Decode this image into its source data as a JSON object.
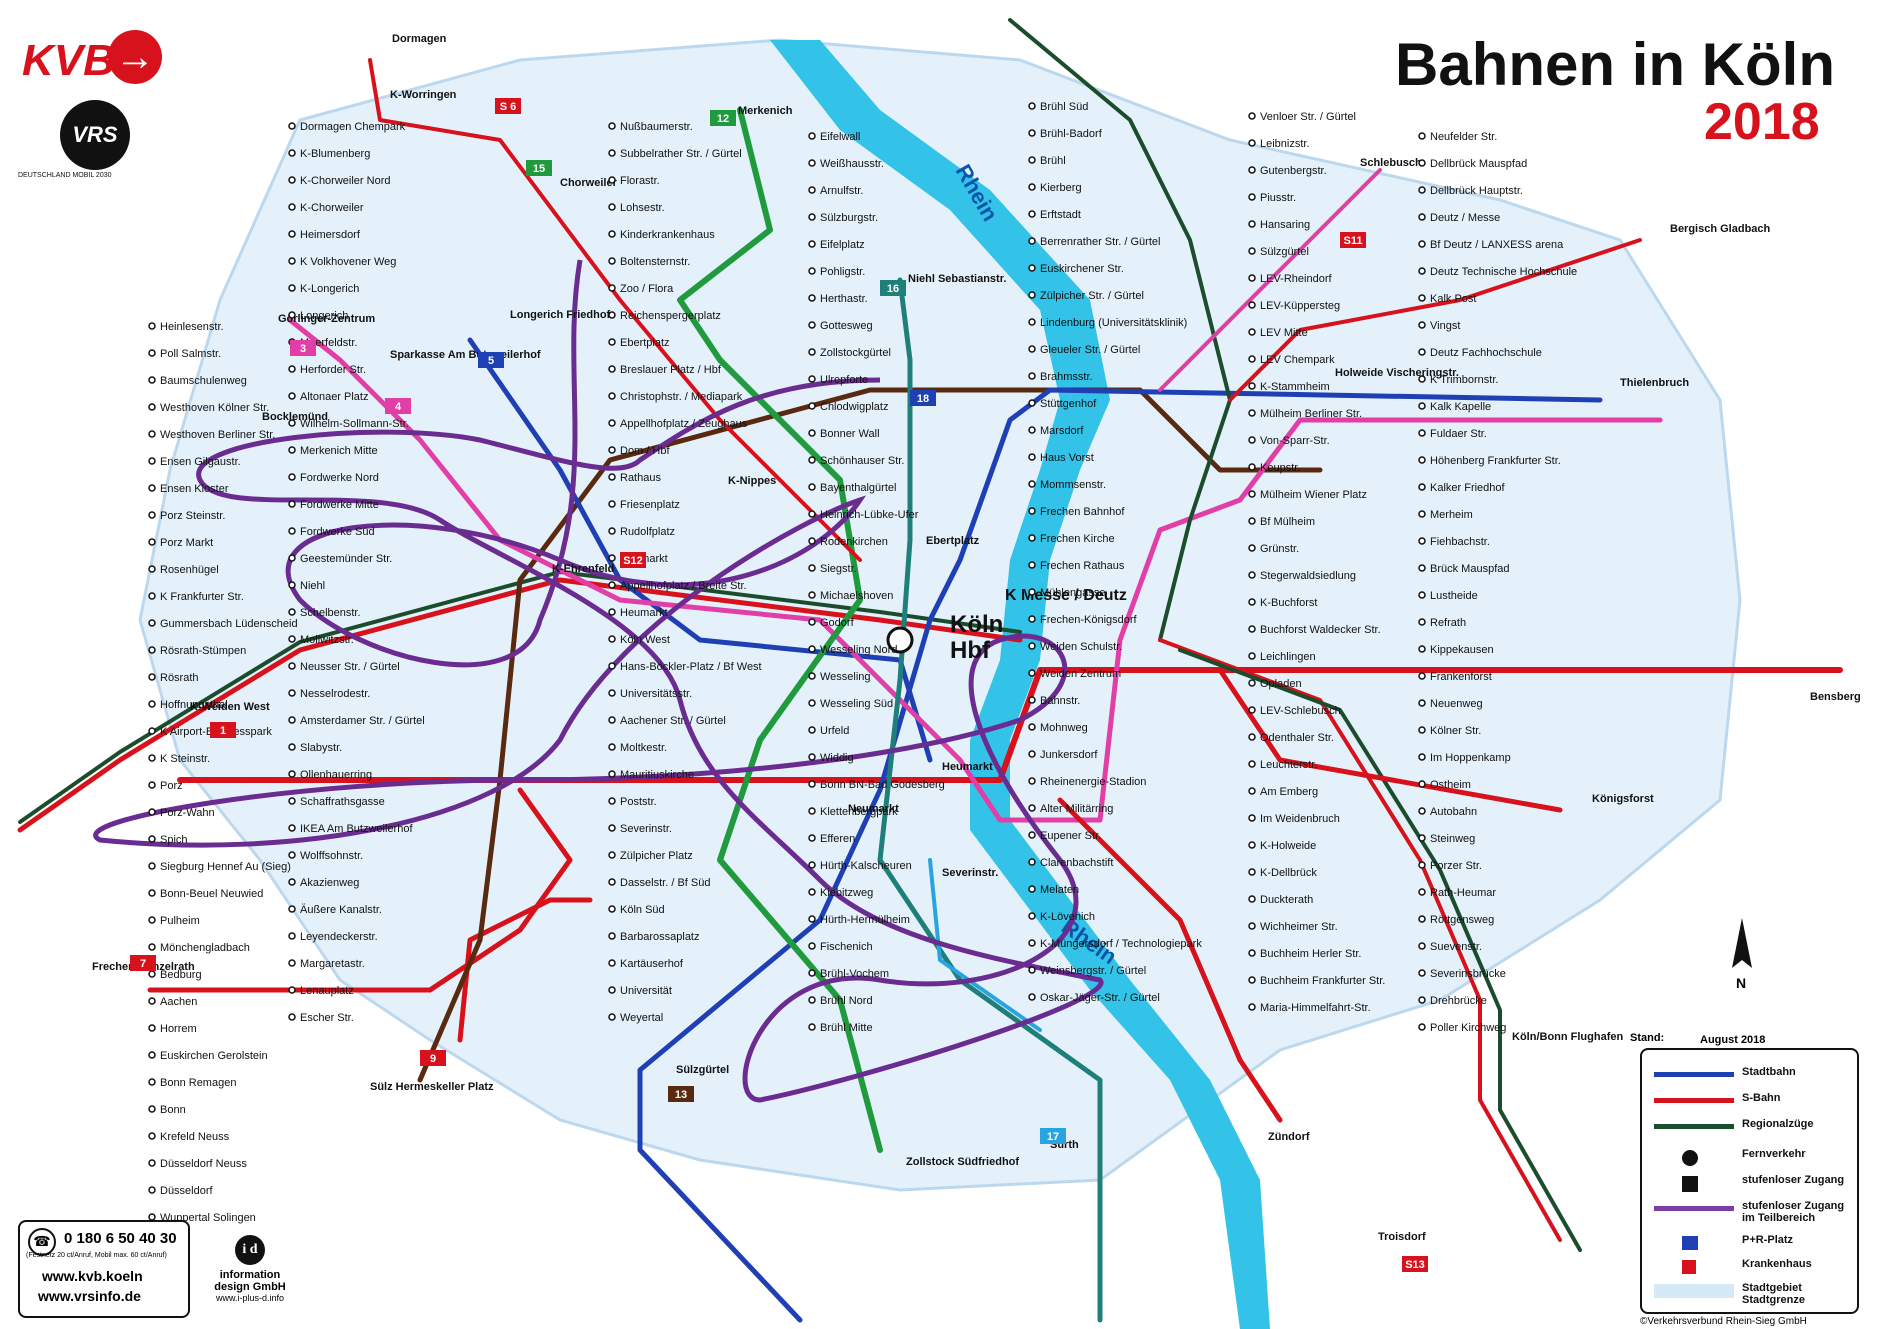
{
  "header": {
    "title": "Bahnen in Köln",
    "year": "2018",
    "logo_kvb": "KVB",
    "logo_vrs": "VRS",
    "logo_dm": "DEUTSCHLAND MOBIL 2030"
  },
  "rivers": [
    {
      "label": "Rhein"
    },
    {
      "label": "Rhein"
    }
  ],
  "hub": {
    "line1": "Köln",
    "line2": "Hbf",
    "messe": "K Messe / Deutz"
  },
  "terminals": [
    "Dormagen",
    "Merkenich",
    "Chorweiler",
    "Görlinger-Zentrum",
    "Bocklemünd",
    "Sparkasse Am Butzweilerhof",
    "Niehl Sebastianstr.",
    "Schlebusch",
    "Bergisch Gladbach",
    "Holweide Vischeringstr.",
    "Thielenbruch",
    "K-Weiden West",
    "Frechen-Benzelrath",
    "Sülz Hermeskeller Platz",
    "Zollstock Südfriedhof",
    "Sürth",
    "Zündorf",
    "Troisdorf",
    "Bensberg",
    "Königsforst",
    "Köln/Bonn Flughafen",
    "Heumarkt",
    "Sülzgürtel",
    "Longerich Friedhof",
    "K-Worringen",
    "K-Nippes",
    "K-Ehrenfeld",
    "Ebertplatz",
    "Neumarkt",
    "Severinstr."
  ],
  "line_badges": [
    {
      "num": "1",
      "color": "#d8121c"
    },
    {
      "num": "3",
      "color": "#e23ea8"
    },
    {
      "num": "4",
      "color": "#e23ea8"
    },
    {
      "num": "5",
      "color": "#1f3fb4"
    },
    {
      "num": "7",
      "color": "#d8121c"
    },
    {
      "num": "9",
      "color": "#d8121c"
    },
    {
      "num": "12",
      "color": "#1f9a3c"
    },
    {
      "num": "13",
      "color": "#5a2a10"
    },
    {
      "num": "15",
      "color": "#1f9a3c"
    },
    {
      "num": "16",
      "color": "#1f7f7a"
    },
    {
      "num": "17",
      "color": "#2aa4e0"
    },
    {
      "num": "18",
      "color": "#1f3fb4"
    },
    {
      "num": "S 6",
      "color": "#d8121c"
    },
    {
      "num": "S11",
      "color": "#d8121c"
    },
    {
      "num": "S12",
      "color": "#d8121c"
    },
    {
      "num": "S13",
      "color": "#d8121c"
    }
  ],
  "stations": [
    "Dormagen Chempark",
    "K-Blumenberg",
    "K-Chorweiler Nord",
    "K-Chorweiler",
    "Heimersdorf",
    "K Volkhovener Weg",
    "K-Longerich",
    "Longerich",
    "Meerfeldstr.",
    "Herforder Str.",
    "Altonaer Platz",
    "Wilhelm-Sollmann-Str.",
    "Merkenich Mitte",
    "Fordwerke Nord",
    "Fordwerke Mitte",
    "Fordwerke Süd",
    "Geestemünder Str.",
    "Niehl",
    "Schelbenstr.",
    "Mollwitzstr.",
    "Neusser Str. / Gürtel",
    "Nesselrodestr.",
    "Amsterdamer Str. / Gürtel",
    "Slabystr.",
    "Ollenhauerring",
    "Schaffrathsgasse",
    "IKEA Am Butzweilerhof",
    "Wolffsohnstr.",
    "Akazienweg",
    "Äußere Kanalstr.",
    "Leyendeckerstr.",
    "Margaretastr.",
    "Lenauplatz",
    "Escher Str.",
    "Nußbaumerstr.",
    "Subbelrather Str. / Gürtel",
    "Florastr.",
    "Lohsestr.",
    "Kinderkrankenhaus",
    "Boltensternstr.",
    "Zoo / Flora",
    "Reichenspergerplatz",
    "Ebertplatz",
    "Breslauer Platz / Hbf",
    "Christophstr. / Mediapark",
    "Appellhofplatz / Zeughaus",
    "Dom / Hbf",
    "Rathaus",
    "Friesenplatz",
    "Rudolfplatz",
    "Neumarkt",
    "Appellhofplatz / Breite Str.",
    "Heumarkt",
    "Köln West",
    "Hans-Böckler-Platz / Bf West",
    "Universitätsstr.",
    "Aachener Str. / Gürtel",
    "Moltkestr.",
    "Mauritiuskirche",
    "Poststr.",
    "Severinstr.",
    "Zülpicher Platz",
    "Dasselstr. / Bf Süd",
    "Köln Süd",
    "Barbarossaplatz",
    "Kartäuserhof",
    "Universität",
    "Weyertal",
    "Eifelwall",
    "Weißhausstr.",
    "Arnulfstr.",
    "Sülzburgstr.",
    "Eifelplatz",
    "Pohligstr.",
    "Herthastr.",
    "Gottesweg",
    "Zollstockgürtel",
    "Ulrepforte",
    "Chlodwigplatz",
    "Bonner Wall",
    "Schönhauser Str.",
    "Bayenthalgürtel",
    "Heinrich-Lübke-Ufer",
    "Rodenkirchen",
    "Siegstr.",
    "Michaelshoven",
    "Godorf",
    "Wesseling Nord",
    "Wesseling",
    "Wesseling Süd",
    "Urfeld",
    "Widdig",
    "Bonn BN-Bad Godesberg",
    "Klettenbergpark",
    "Efferen",
    "Hürth-Kalscheuren",
    "Kiebitzweg",
    "Hürth-Hermülheim",
    "Fischenich",
    "Brühl-Vochem",
    "Brühl Nord",
    "Brühl Mitte",
    "Brühl Süd",
    "Brühl-Badorf",
    "Brühl",
    "Kierberg",
    "Erftstadt",
    "Berrenrather Str. / Gürtel",
    "Euskirchener Str.",
    "Zülpicher Str. / Gürtel",
    "Lindenburg (Universitätsklinik)",
    "Gleueler Str. / Gürtel",
    "Brahmsstr.",
    "Stüttgenhof",
    "Marsdorf",
    "Haus Vorst",
    "Mommsenstr.",
    "Frechen Bahnhof",
    "Frechen Kirche",
    "Frechen Rathaus",
    "Mühlengasse",
    "Frechen-Königsdorf",
    "Weiden Schulstr.",
    "Weiden Zentrum",
    "Bahnstr.",
    "Mohnweg",
    "Junkersdorf",
    "Rheinenergie-Stadion",
    "Alter Militärring",
    "Eupener Str.",
    "Clarenbachstift",
    "Melaten",
    "K-Lövenich",
    "K-Müngersdorf / Technologiepark",
    "Weinsbergstr. / Gürtel",
    "Oskar-Jäger-Str. / Gürtel",
    "Venloer Str. / Gürtel",
    "Leibnizstr.",
    "Gutenbergstr.",
    "Piusstr.",
    "Hansaring",
    "Sülzgürtel",
    "LEV-Rheindorf",
    "LEV-Küppersteg",
    "LEV Mitte",
    "LEV Chempark",
    "K-Stammheim",
    "Mülheim Berliner Str.",
    "Von-Sparr-Str.",
    "Keupstr.",
    "Mülheim Wiener Platz",
    "Bf Mülheim",
    "Grünstr.",
    "Stegerwaldsiedlung",
    "K-Buchforst",
    "Buchforst Waldecker Str.",
    "Leichlingen",
    "Opladen",
    "LEV-Schlebusch",
    "Odenthaler Str.",
    "Leuchterstr.",
    "Am Emberg",
    "Im Weidenbruch",
    "K-Holweide",
    "K-Dellbrück",
    "Duckterath",
    "Wichheimer Str.",
    "Buchheim Herler Str.",
    "Buchheim Frankfurter Str.",
    "Maria-Himmelfahrt-Str.",
    "Neufelder Str.",
    "Dellbrück Mauspfad",
    "Dellbrück Hauptstr.",
    "Deutz / Messe",
    "Bf Deutz / LANXESS arena",
    "Deutz Technische Hochschule",
    "Kalk Post",
    "Vingst",
    "Deutz Fachhochschule",
    "K Trimbornstr.",
    "Kalk Kapelle",
    "Fuldaer Str.",
    "Höhenberg Frankfurter Str.",
    "Kalker Friedhof",
    "Merheim",
    "Fiehbachstr.",
    "Brück Mauspfad",
    "Lustheide",
    "Refrath",
    "Kippekausen",
    "Frankenforst",
    "Neuenweg",
    "Kölner Str.",
    "Im Hoppenkamp",
    "Ostheim",
    "Autobahn",
    "Steinweg",
    "Porzer Str.",
    "Rath-Heumar",
    "Röttgensweg",
    "Suevenstr.",
    "Severinsbrücke",
    "Drehbrücke",
    "Poller Kirchweg",
    "Heinlesenstr.",
    "Poll Salmstr.",
    "Baumschulenweg",
    "Westhoven Kölner Str.",
    "Westhoven Berliner Str.",
    "Ensen Gilgaustr.",
    "Ensen Kloster",
    "Porz Steinstr.",
    "Porz Markt",
    "Rosenhügel",
    "K Frankfurter Str.",
    "Gummersbach Lüdenscheid",
    "Rösrath-Stümpen",
    "Rösrath",
    "Hoffnungsthal",
    "K Airport-Businesspark",
    "K Steinstr.",
    "Porz",
    "Porz-Wahn",
    "Spich",
    "Siegburg Hennef Au (Sieg)",
    "Bonn-Beuel Neuwied",
    "Pulheim",
    "Mönchengladbach",
    "Bedburg",
    "Aachen",
    "Horrem",
    "Euskirchen Gerolstein",
    "Bonn Remagen",
    "Bonn",
    "Krefeld Neuss",
    "Düsseldorf Neuss",
    "Düsseldorf",
    "Wuppertal Solingen"
  ],
  "legend": {
    "stand_label": "Stand:",
    "stand_value": "August 2018",
    "items": [
      {
        "label": "Stadtbahn",
        "color": "#1f3fb4"
      },
      {
        "label": "S-Bahn",
        "color": "#d8121c"
      },
      {
        "label": "Regionalzüge",
        "color": "#1b4d2c"
      },
      {
        "label": "Fernverkehr",
        "color": "#111111"
      },
      {
        "label": "stufenloser Zugang",
        "color": "#111111"
      },
      {
        "label": "stufenloser Zugang im Teilbereich",
        "color": "#7a3fa0"
      },
      {
        "label": "P+R-Platz",
        "color": "#1f3fb4"
      },
      {
        "label": "Krankenhaus",
        "color": "#d8121c"
      },
      {
        "label": "Stadtgebiet Stadtgrenze",
        "color": "#d6e9f6"
      }
    ]
  },
  "contact": {
    "phone": "0 180 6 50 40 30",
    "note": "(Festnetz 20 ct/Anruf, Mobil max. 60 ct/Anruf)",
    "web1": "www.kvb.koeln",
    "web2": "www.vrsinfo.de"
  },
  "design": {
    "line1": "information",
    "line2": "design GmbH",
    "line3": "www.i-plus-d.info"
  },
  "copyright": "©Verkehrsverbund Rhein-Sieg GmbH",
  "colors": {
    "red": "#d8121c",
    "blue": "#1f3fb4",
    "green": "#1f9a3c",
    "pink": "#e23ea8",
    "brown": "#5a2a10",
    "teal": "#1f7f7a",
    "cyan": "#2aa4e0",
    "river": "#34c3e8",
    "area": "#e4f1fa",
    "regional": "#1b4d2c",
    "scribble": "#6a2c91"
  }
}
